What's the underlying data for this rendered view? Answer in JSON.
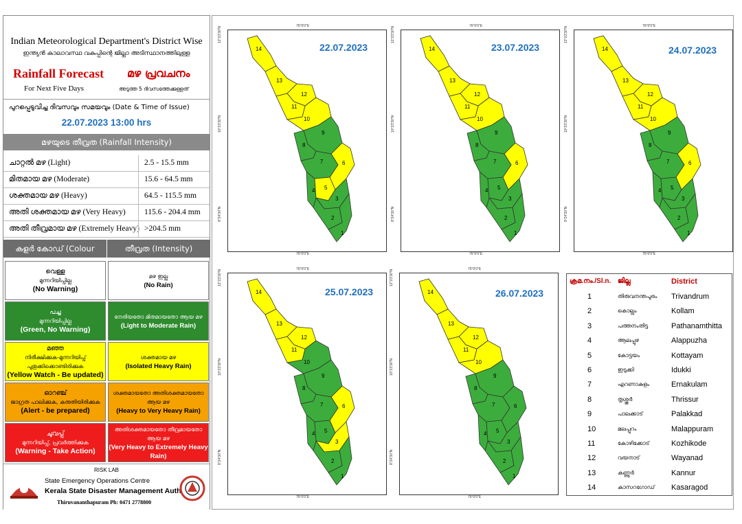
{
  "header": {
    "title_en": "Indian Meteorological Department's District Wise",
    "title_ml": "ഇന്ത്യൻ കാലാവസ്ഥ വകുപ്പിന്റെ ജില്ലാ അടിസ്ഥാനത്തിലുള്ള",
    "forecast_en": "Rainfall Forecast",
    "forecast_ml": "മഴ പ്രവചനം",
    "subtitle_en": "For Next Five Days",
    "subtitle_ml": "അടുത്ത 5 ദിവസത്തേക്കുള്ളത്"
  },
  "issue": {
    "label": "പുറപ്പെടുവിച്ച ദിവസവും സമയവും (Date & Time of Issue)",
    "value": "22.07.2023 13:00 hrs"
  },
  "intensity": {
    "heading": "മഴയുടെ തീവ്രത (Rainfall Intensity)",
    "rows": [
      {
        "label": "ചാറ്റൽ മഴ (Light)",
        "range": "2.5 - 15.5 mm"
      },
      {
        "label": "മിതമായ മഴ (Moderate)",
        "range": "15.6 - 64.5 mm"
      },
      {
        "label": "ശക്തമായ മഴ (Heavy)",
        "range": "64.5 - 115.5 mm"
      },
      {
        "label": "അതി ശക്തമായ മഴ (Very Heavy)",
        "range": "115.6 - 204.4 mm"
      },
      {
        "label": "അതി തീവ്രമായ മഴ (Extremely Heavy)",
        "range": ">204.5 mm"
      }
    ]
  },
  "codes": {
    "col1": "കളർ കോഡ് (Colour Code)",
    "col2": "തീവ്രത (Intensity)",
    "rows": [
      {
        "c_ml1": "വെള്ള",
        "c_ml2": "മുന്നറിയിപ്പില്ല",
        "c_en": "(No Warning)",
        "i_ml": "മഴ ഇല്ല",
        "i_en": "(No Rain)",
        "color": "#ffffff",
        "text": "#000000"
      },
      {
        "c_ml1": "പച്ച",
        "c_ml2": "മുന്നറിയിപ്പില്ല",
        "c_en": "(Green, No Warning)",
        "i_ml": "നേരിയതോ മിതമായതോ ആയ മഴ",
        "i_en": "(Light to Moderate Rain)",
        "color": "#2e8b2e",
        "text": "#ffffff"
      },
      {
        "c_ml1": "മഞ്ഞ",
        "c_ml2": "നിരീക്ഷിക്കുക-മുന്നറിയിപ്പ് പുതുക്കിക്കൊണ്ടിരിക്കുക",
        "c_en": "(Yellow Watch - Be updated)",
        "i_ml": "ശക്തമായ മഴ",
        "i_en": "(Isolated Heavy Rain)",
        "color": "#ffff00",
        "text": "#000000"
      },
      {
        "c_ml1": "ഓറഞ്ച്",
        "c_ml2": "ജാഗ്രത പാലിക്കുക, കരുതിയിരിക്കുക",
        "c_en": "(Alert - be prepared)",
        "i_ml": "ശക്തമായതോ അതിശക്തമായതോ ആയ മഴ",
        "i_en": "(Heavy to Very Heavy Rain)",
        "color": "#f5a100",
        "text": "#000000"
      },
      {
        "c_ml1": "ചുവപ്പ്",
        "c_ml2": "മുന്നറിയിപ്പ്, പ്രവർത്തിക്കുക",
        "c_en": "(Warning - Take Action)",
        "i_ml": "അതിശക്തമായതോ തീവ്രമായതോ ആയ മഴ",
        "i_en": "(Very Heavy to Extremely Heavy Rain)",
        "color": "#ee1c1c",
        "text": "#ffffff"
      }
    ]
  },
  "footer": {
    "lab": "RISK LAB",
    "centre": "State Emergency Operations Centre",
    "authority": "Kerala State Disaster Management Authority",
    "contact": "Thiruvananthapuram Ph: 0471 2778800"
  },
  "coords": {
    "lon": "76°0'0\"E",
    "lat_top": "12°23'30\"N",
    "lat_mid": "10°23'30\"N",
    "lat_bot": "8°24'30\"N"
  },
  "colors": {
    "yellow": "#ffff00",
    "green": "#3cad3c",
    "border": "#333333"
  },
  "maps": [
    {
      "date": "22.07.2023",
      "yellow": [
        14,
        13,
        12,
        11,
        10,
        6,
        5
      ]
    },
    {
      "date": "23.07.2023",
      "yellow": [
        14,
        13,
        12,
        11,
        10,
        6
      ]
    },
    {
      "date": "24.07.2023",
      "yellow": [
        14,
        13,
        12,
        11,
        10,
        6
      ]
    },
    {
      "date": "25.07.2023",
      "yellow": [
        14,
        13,
        12,
        11,
        6,
        3
      ]
    },
    {
      "date": "26.07.2023",
      "yellow": [
        14,
        13,
        12,
        11,
        10
      ]
    }
  ],
  "district_table": {
    "head_no": "ക്രമ.നം./Sl.n.",
    "head_ml": "ജില്ല",
    "head_en": "District",
    "rows": [
      {
        "n": "1",
        "ml": "തിരുവനന്തപുരം",
        "en": "Trivandrum"
      },
      {
        "n": "2",
        "ml": "കൊല്ലം",
        "en": "Kollam"
      },
      {
        "n": "3",
        "ml": "പത്തനംതിട്ട",
        "en": "Pathanamthitta"
      },
      {
        "n": "4",
        "ml": "ആലപ്പുഴ",
        "en": "Alappuzha"
      },
      {
        "n": "5",
        "ml": "കോട്ടയം",
        "en": "Kottayam"
      },
      {
        "n": "6",
        "ml": "ഇടുക്കി",
        "en": "Idukki"
      },
      {
        "n": "7",
        "ml": "എറണാകുളം",
        "en": "Ernakulam"
      },
      {
        "n": "8",
        "ml": "തൃശ്ശൂർ",
        "en": "Thrissur"
      },
      {
        "n": "9",
        "ml": "പാലക്കാട്",
        "en": "Palakkad"
      },
      {
        "n": "10",
        "ml": "മലപ്പുറം",
        "en": "Malappuram"
      },
      {
        "n": "11",
        "ml": "കോഴിക്കോട്",
        "en": "Kozhikode"
      },
      {
        "n": "12",
        "ml": "വയനാട്",
        "en": "Wayanad"
      },
      {
        "n": "13",
        "ml": "കണ്ണൂർ",
        "en": "Kannur"
      },
      {
        "n": "14",
        "ml": "കാസറഗോഡ്",
        "en": "Kasaragod"
      }
    ]
  }
}
